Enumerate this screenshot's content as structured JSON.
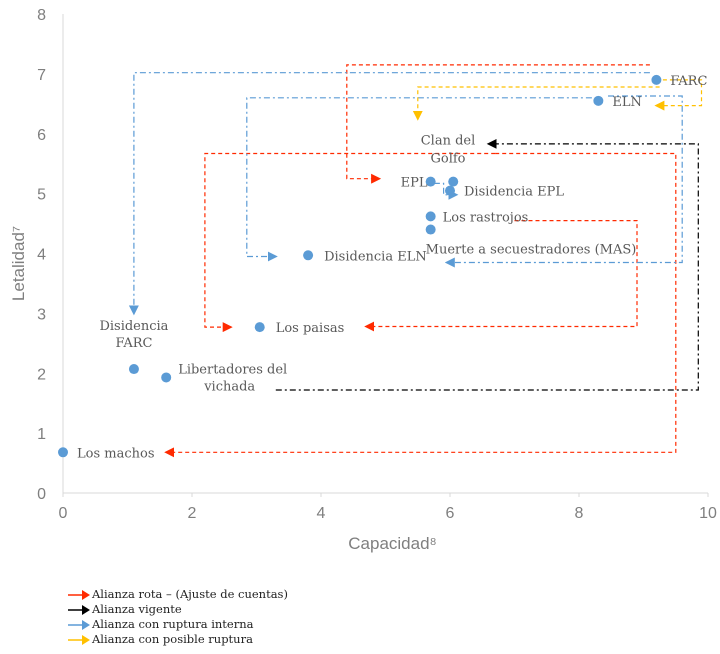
{
  "chart_data": {
    "type": "scatter",
    "xlabel": "Capacidad⁸",
    "ylabel": "Letalidad⁷",
    "xlim": [
      0,
      10
    ],
    "ylim": [
      0,
      8
    ],
    "xticks": [
      "0",
      "2",
      "4",
      "6",
      "8",
      "10"
    ],
    "yticks": [
      "0",
      "1",
      "2",
      "3",
      "4",
      "5",
      "6",
      "7",
      "8"
    ],
    "grid": false,
    "point_color": "#5b9bd5",
    "points": [
      {
        "label": "FARC",
        "x": 9.2,
        "y": 6.9
      },
      {
        "label": "ELN",
        "x": 8.3,
        "y": 6.55
      },
      {
        "label": "EPL",
        "x": 5.7,
        "y": 5.2
      },
      {
        "label": "",
        "x": 6.05,
        "y": 5.2
      },
      {
        "label": "Disidencia EPL",
        "x": 6.0,
        "y": 5.05
      },
      {
        "label": "Los rastrojos",
        "x": 5.7,
        "y": 4.62
      },
      {
        "label": "Muerte a secuestradores (MAS)",
        "x": 5.7,
        "y": 4.4
      },
      {
        "label": "Disidencia ELN",
        "x": 3.8,
        "y": 3.97
      },
      {
        "label": "Los paisas",
        "x": 3.05,
        "y": 2.77
      },
      {
        "label": "Disidencia FARC",
        "x": 1.1,
        "y": 2.07
      },
      {
        "label": "Libertadores del vichada",
        "x": 1.6,
        "y": 1.93
      },
      {
        "label": "Los machos",
        "x": 0.0,
        "y": 0.68
      }
    ],
    "annotations": [
      {
        "label": "Clan del Golfo",
        "lines": [
          "Clan del",
          "Golfo"
        ]
      }
    ],
    "legend": [
      {
        "name": "Alianza rota – (Ajuste de cuentas)",
        "color": "#ff2a00"
      },
      {
        "name": "Alianza vigente",
        "color": "#000000"
      },
      {
        "name": "Alianza con ruptura interna",
        "color": "#5b9bd5"
      },
      {
        "name": "Alianza con posible ruptura",
        "color": "#ffc000"
      }
    ],
    "legend_position": "bottom-left",
    "relations": [
      {
        "type": "Alianza rota – (Ajuste de cuentas)",
        "from": "FARC",
        "to": "EPL"
      },
      {
        "type": "Alianza rota – (Ajuste de cuentas)",
        "from": "Clan del Golfo",
        "to": "Los paisas"
      },
      {
        "type": "Alianza rota – (Ajuste de cuentas)",
        "from": "Clan del Golfo",
        "to": "Los machos"
      },
      {
        "type": "Alianza rota – (Ajuste de cuentas)",
        "from": "Los rastrojos",
        "to": "Los paisas"
      },
      {
        "type": "Alianza vigente",
        "from": "Libertadores del vichada",
        "to": "Clan del Golfo"
      },
      {
        "type": "Alianza con ruptura interna",
        "from": "FARC",
        "to": "Disidencia FARC"
      },
      {
        "type": "Alianza con ruptura interna",
        "from": "ELN",
        "to": "Disidencia ELN"
      },
      {
        "type": "Alianza con ruptura interna",
        "from": "ELN",
        "to": "Muerte a secuestradores (MAS)"
      },
      {
        "type": "Alianza con ruptura interna",
        "from": "EPL",
        "to": "Disidencia EPL"
      },
      {
        "type": "Alianza con posible ruptura",
        "from": "FARC",
        "to": "ELN"
      }
    ]
  }
}
